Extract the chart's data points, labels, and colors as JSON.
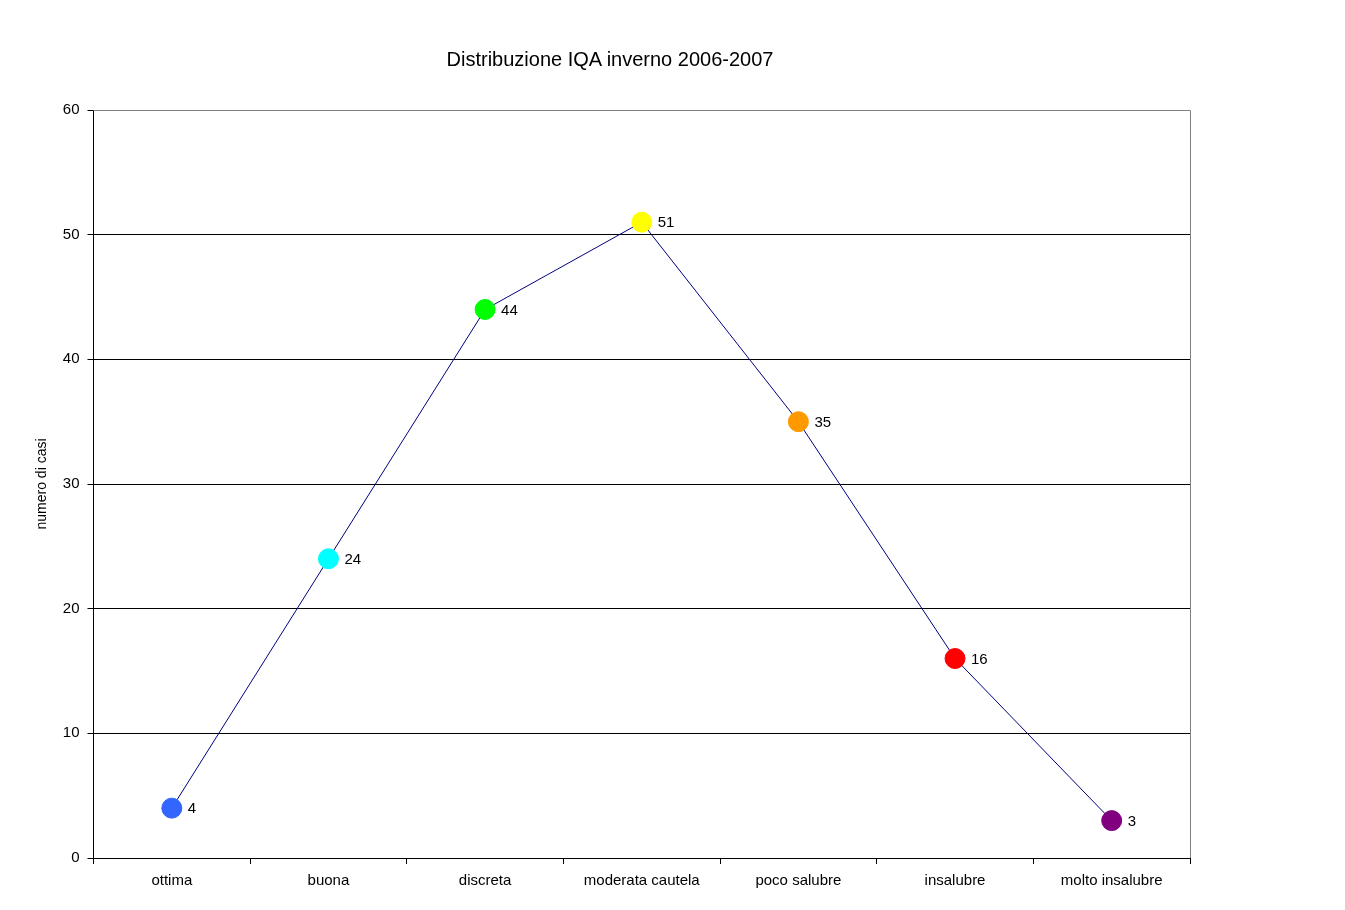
{
  "chart_data": {
    "type": "line",
    "title": "Distribuzione IQA inverno 2006-2007",
    "ylabel": "numero di casi",
    "categories": [
      "ottima",
      "buona",
      "discreta",
      "moderata cautela",
      "poco salubre",
      "insalubre",
      "molto insalubre"
    ],
    "series": [
      {
        "color": "#000080",
        "values": [
          4,
          24,
          44,
          51,
          35,
          16,
          3
        ],
        "colors": [
          "#3366ff",
          "#00ffff",
          "#00ff00",
          "#ffff00",
          "#ff9900",
          "#ff0000",
          "#800080"
        ]
      }
    ],
    "ylim": [
      0,
      60
    ],
    "yticks": [
      0,
      10,
      20,
      30,
      40,
      50,
      60
    ],
    "grid": "y",
    "legend": false,
    "marker": "circle",
    "data_labels": true
  }
}
